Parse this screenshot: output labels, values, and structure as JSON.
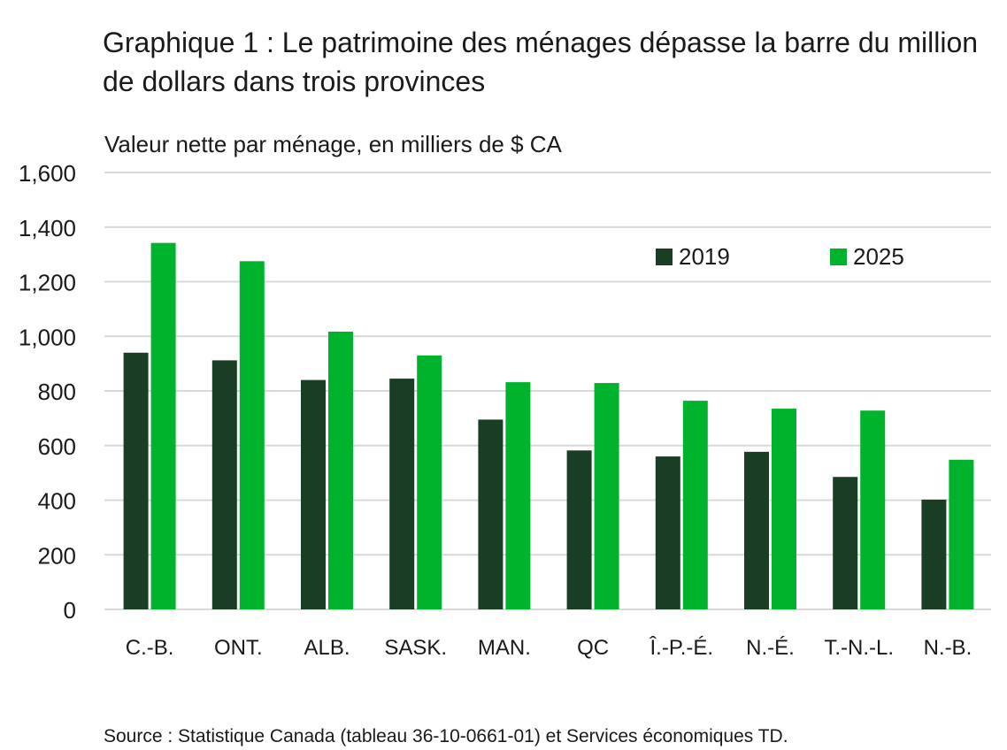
{
  "title": "Graphique 1 : Le patrimoine des ménages dépasse la barre du million de dollars dans trois provinces",
  "subtitle": "Valeur nette par ménage, en milliers de $ CA",
  "source": "Source : Statistique Canada (tableau 36-10-0661-01) et Services économiques TD.",
  "colors": {
    "s2019": "#1a3d26",
    "s2025": "#00b32c",
    "grid": "#d9d9d9",
    "text": "#1a1a1a"
  },
  "chart_data": {
    "type": "bar",
    "categories": [
      "C.-B.",
      "ONT.",
      "ALB.",
      "SASK.",
      "MAN.",
      "QC",
      "Î.-P.-É.",
      "N.-É.",
      "T.-N.-L.",
      "N.-B."
    ],
    "series": [
      {
        "name": "2019",
        "values": [
          940,
          912,
          840,
          845,
          695,
          582,
          560,
          577,
          485,
          402
        ]
      },
      {
        "name": "2025",
        "values": [
          1342,
          1275,
          1017,
          930,
          832,
          829,
          764,
          735,
          728,
          548
        ]
      }
    ],
    "yticks": [
      "0",
      "200",
      "400",
      "600",
      "800",
      "1,000",
      "1,200",
      "1,400",
      "1,600"
    ],
    "ylim": [
      0,
      1600
    ],
    "grid": true,
    "legend_position": "top-right"
  }
}
